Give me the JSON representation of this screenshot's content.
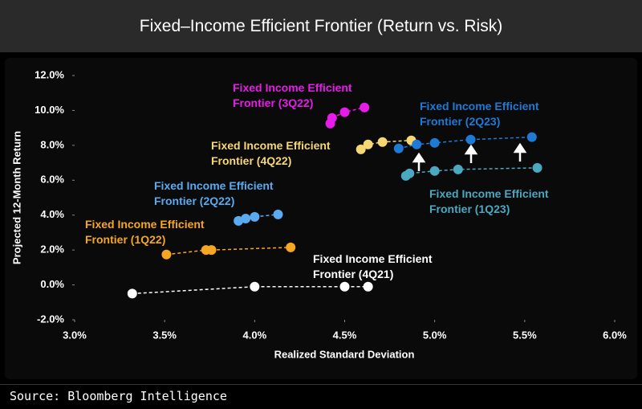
{
  "chart_data": {
    "type": "scatter",
    "title": "Fixed–Income Efficient Frontier (Return vs. Risk)",
    "x_label": "Realized Standard Deviation",
    "y_label": "Projected 12-Month Return",
    "xlim": [
      3.0,
      6.0
    ],
    "xticks": [
      {
        "value": 3.0,
        "label": "3.0%"
      },
      {
        "value": 3.5,
        "label": "3.5%"
      },
      {
        "value": 4.0,
        "label": "4.0%"
      },
      {
        "value": 4.5,
        "label": "4.5%"
      },
      {
        "value": 5.0,
        "label": "5.0%"
      },
      {
        "value": 5.5,
        "label": "5.5%"
      },
      {
        "value": 6.0,
        "label": "6.0%"
      }
    ],
    "ylim": [
      -2.0,
      12.0
    ],
    "yticks": [
      {
        "value": -2.0,
        "label": "-2.0%"
      },
      {
        "value": 0.0,
        "label": "0.0%"
      },
      {
        "value": 2.0,
        "label": "2.0%"
      },
      {
        "value": 4.0,
        "label": "4.0%"
      },
      {
        "value": 6.0,
        "label": "6.0%"
      },
      {
        "value": 8.0,
        "label": "8.0%"
      },
      {
        "value": 10.0,
        "label": "10.0%"
      },
      {
        "value": 12.0,
        "label": "12.0%"
      }
    ],
    "line_style": "dashed",
    "series": [
      {
        "name": "Fixed Income Efficient Frontier (4Q21)",
        "color": "#ffffff",
        "x": [
          3.32,
          4.0,
          4.5,
          4.63
        ],
        "values": [
          -0.5,
          -0.1,
          -0.1,
          -0.1
        ]
      },
      {
        "name": "Fixed Income Efficient Frontier (1Q22)",
        "color": "#f5a623",
        "x": [
          3.51,
          3.73,
          3.76,
          4.2
        ],
        "values": [
          1.74,
          2.0,
          2.0,
          2.15
        ]
      },
      {
        "name": "Fixed Income Efficient Frontier (2Q22)",
        "color": "#5aaaf0",
        "x": [
          3.91,
          3.95,
          4.0,
          4.13
        ],
        "values": [
          3.67,
          3.8,
          3.9,
          4.04
        ]
      },
      {
        "name": "Fixed Income Efficient Frontier (3Q22)",
        "color": "#e81ce8",
        "x": [
          4.42,
          4.43,
          4.5,
          4.61
        ],
        "values": [
          9.25,
          9.57,
          9.9,
          10.17
        ]
      },
      {
        "name": "Fixed Income Efficient Frontier (4Q22)",
        "color": "#f7d774",
        "x": [
          4.59,
          4.63,
          4.71,
          4.87
        ],
        "values": [
          7.77,
          8.05,
          8.19,
          8.28
        ]
      },
      {
        "name": "Fixed Income Efficient Frontier (1Q23)",
        "color": "#4aa8c0",
        "x": [
          4.84,
          4.86,
          5.0,
          5.13,
          5.57
        ],
        "values": [
          6.25,
          6.39,
          6.53,
          6.62,
          6.71
        ]
      },
      {
        "name": "Fixed Income Efficient Frontier (2Q23)",
        "color": "#1f7ad6",
        "x": [
          4.8,
          4.9,
          5.0,
          5.2,
          5.54
        ],
        "values": [
          7.82,
          8.05,
          8.14,
          8.33,
          8.47
        ]
      }
    ]
  },
  "source": "Source: Bloomberg Intelligence"
}
